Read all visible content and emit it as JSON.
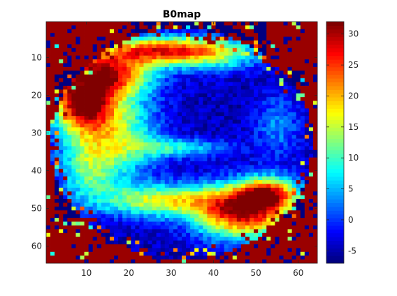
{
  "chart_data": {
    "type": "heatmap",
    "title": "B0map",
    "xlabel": "",
    "ylabel": "",
    "grid": false,
    "colormap": "jet",
    "color_limits": [
      -7,
      32
    ],
    "xlim": [
      0.5,
      64.5
    ],
    "ylim": [
      0.5,
      64.5
    ],
    "y_direction": "reversed",
    "x_ticks": [
      10,
      20,
      30,
      40,
      50,
      60
    ],
    "y_ticks": [
      10,
      20,
      30,
      40,
      50,
      60
    ],
    "colorbar_ticks": [
      -5,
      0,
      5,
      10,
      15,
      20,
      25,
      30
    ],
    "rows": 64,
    "cols": 64,
    "approx_regions": [
      {
        "region": "top-left corner background",
        "value": 31
      },
      {
        "region": "top-right corner background",
        "value": 31
      },
      {
        "region": "bottom-left and bottom-right background",
        "value": 31
      },
      {
        "region": "upper-left arc around (row 20, col 10)",
        "value": 30
      },
      {
        "region": "upper band near row 8, cols 20-35",
        "value": 24
      },
      {
        "region": "lower-right arc around (row 52, col 48)",
        "value": 29
      },
      {
        "region": "lower band around (row 48, col 30)",
        "value": 20
      },
      {
        "region": "interior center around (row 30, col 35)",
        "value": -4
      },
      {
        "region": "interior left lobe around (row 30, col 18)",
        "value": 9
      },
      {
        "region": "outside ellipse, near edges",
        "value": -7
      }
    ]
  }
}
